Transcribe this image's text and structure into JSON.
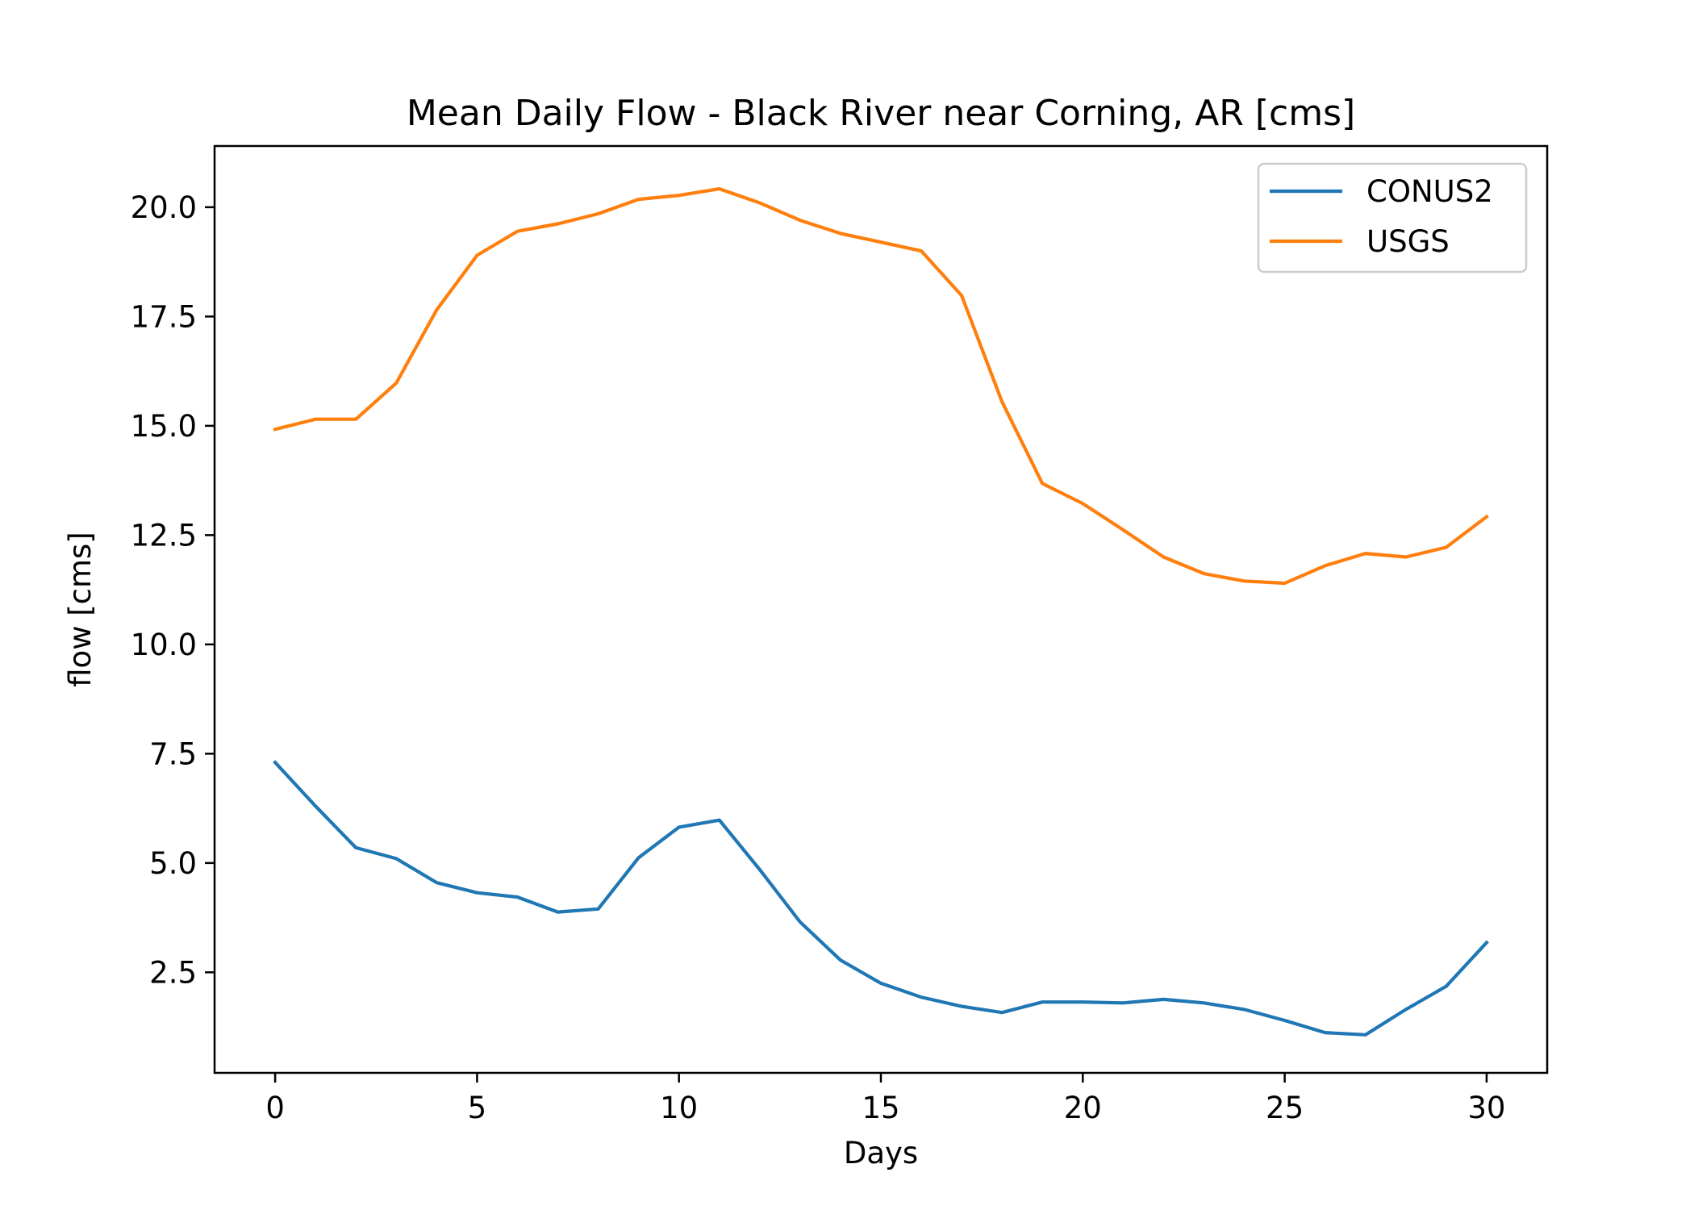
{
  "chart_data": {
    "type": "line",
    "title": "Mean Daily Flow - Black River near Corning, AR [cms]",
    "xlabel": "Days",
    "ylabel": "flow [cms]",
    "xlim": [
      -1.5,
      31.5
    ],
    "ylim": [
      0.2,
      21.4
    ],
    "xticks": [
      0,
      5,
      10,
      15,
      20,
      25,
      30
    ],
    "xtick_labels": [
      "0",
      "5",
      "10",
      "15",
      "20",
      "25",
      "30"
    ],
    "yticks": [
      2.5,
      5.0,
      7.5,
      10.0,
      12.5,
      15.0,
      17.5,
      20.0
    ],
    "ytick_labels": [
      "2.5",
      "5.0",
      "7.5",
      "10.0",
      "12.5",
      "15.0",
      "17.5",
      "20.0"
    ],
    "grid": false,
    "legend_position": "upper right",
    "x": [
      0,
      1,
      2,
      3,
      4,
      5,
      6,
      7,
      8,
      9,
      10,
      11,
      12,
      13,
      14,
      15,
      16,
      17,
      18,
      19,
      20,
      21,
      22,
      23,
      24,
      25,
      26,
      27,
      28,
      29,
      30
    ],
    "series": [
      {
        "name": "CONUS2",
        "color": "#1f77b4",
        "values": [
          7.3,
          6.3,
          5.35,
          5.1,
          4.55,
          4.32,
          4.22,
          3.88,
          3.95,
          5.12,
          5.82,
          5.98,
          4.85,
          3.65,
          2.78,
          2.25,
          1.93,
          1.72,
          1.58,
          1.82,
          1.82,
          1.8,
          1.88,
          1.8,
          1.65,
          1.4,
          1.12,
          1.07,
          1.65,
          2.18,
          3.18
        ]
      },
      {
        "name": "USGS",
        "color": "#ff7f0e",
        "values": [
          14.92,
          15.15,
          15.15,
          15.98,
          17.65,
          18.9,
          19.45,
          19.62,
          19.85,
          20.18,
          20.27,
          20.42,
          20.1,
          19.7,
          19.4,
          19.2,
          19.0,
          17.98,
          15.55,
          13.68,
          13.22,
          12.62,
          12.0,
          11.62,
          11.45,
          11.4,
          11.8,
          12.08,
          12.0,
          12.22,
          12.92
        ]
      }
    ]
  }
}
